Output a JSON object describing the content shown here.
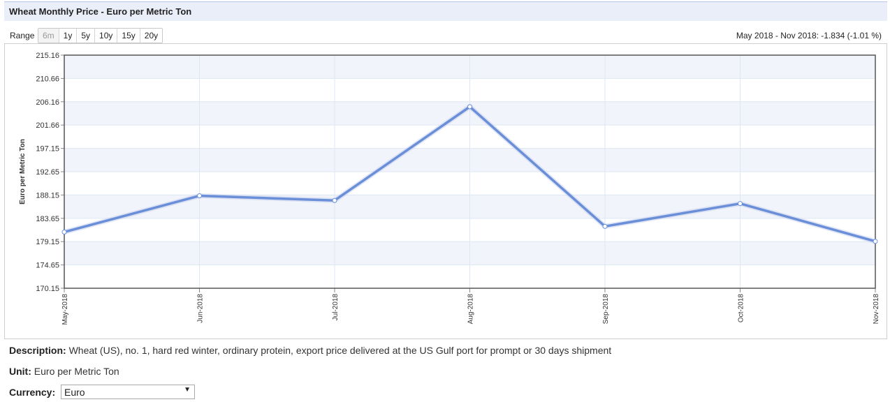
{
  "header": {
    "title": "Wheat Monthly Price - Euro per Metric Ton"
  },
  "range": {
    "label": "Range",
    "buttons": [
      "6m",
      "1y",
      "5y",
      "10y",
      "15y",
      "20y"
    ],
    "active": "6m"
  },
  "change_text": "May 2018 - Nov 2018: -1.834 (-1.01 %)",
  "description": {
    "label": "Description:",
    "text": "Wheat (US), no. 1, hard red winter, ordinary protein, export price delivered at the US Gulf port for prompt or 30 days shipment"
  },
  "unit": {
    "label": "Unit:",
    "text": "Euro per Metric Ton"
  },
  "currency": {
    "label": "Currency:",
    "selected": "Euro"
  },
  "colors": {
    "line": "#6a8fd8",
    "band": "#f2f4fb",
    "grid": "#dde6f3"
  },
  "chart_data": {
    "type": "line",
    "title": "",
    "xlabel": "",
    "ylabel": "Euro per Metric Ton",
    "categories": [
      "May-2018",
      "Jun-2018",
      "Jul-2018",
      "Aug-2018",
      "Sep-2018",
      "Oct-2018",
      "Nov-2018"
    ],
    "series": [
      {
        "values": [
          181.0,
          188.0,
          187.1,
          205.2,
          182.1,
          186.5,
          179.2
        ]
      }
    ],
    "yticks": [
      "170.15",
      "174.65",
      "179.15",
      "183.65",
      "188.15",
      "192.65",
      "197.15",
      "201.66",
      "206.16",
      "210.66",
      "215.16"
    ],
    "ylim": [
      170.15,
      215.16
    ],
    "grid": true,
    "alternating_bands": true
  }
}
